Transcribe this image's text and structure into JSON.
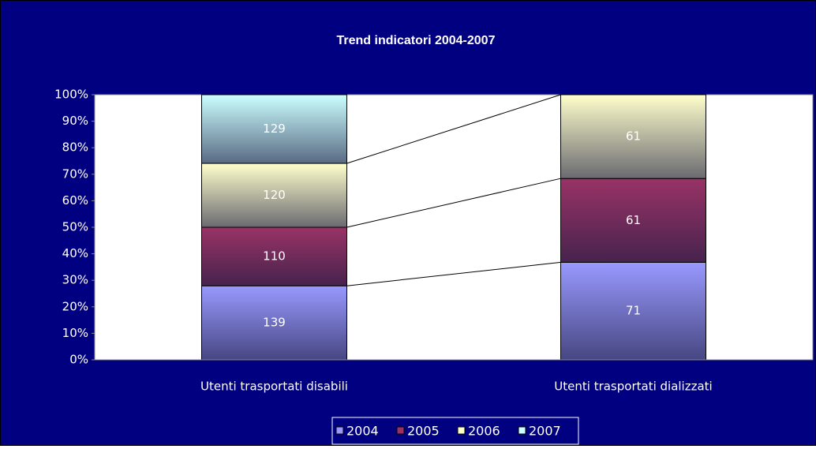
{
  "chart_data": {
    "type": "bar",
    "stacked": "percent",
    "title": "Trend indicatori 2004-2007",
    "categories": [
      "Utenti trasportati disabili",
      "Utenti trasportati dializzati"
    ],
    "series": [
      {
        "name": "2004",
        "color": "#9999ff",
        "values": [
          139,
          71
        ]
      },
      {
        "name": "2005",
        "color": "#993366",
        "values": [
          110,
          61
        ]
      },
      {
        "name": "2006",
        "color": "#ffffcc",
        "values": [
          120,
          61
        ]
      },
      {
        "name": "2007",
        "color": "#ccffff",
        "values": [
          129,
          null
        ]
      }
    ],
    "ylim": [
      0,
      100
    ],
    "yticks": [
      {
        "value": 0,
        "label": "0%"
      },
      {
        "value": 10,
        "label": "10%"
      },
      {
        "value": 20,
        "label": "20%"
      },
      {
        "value": 30,
        "label": "30%"
      },
      {
        "value": 40,
        "label": "40%"
      },
      {
        "value": 50,
        "label": "50%"
      },
      {
        "value": 60,
        "label": "60%"
      },
      {
        "value": 70,
        "label": "70%"
      },
      {
        "value": 80,
        "label": "80%"
      },
      {
        "value": 90,
        "label": "90%"
      },
      {
        "value": 100,
        "label": "100%"
      }
    ],
    "legend": "bottom"
  }
}
